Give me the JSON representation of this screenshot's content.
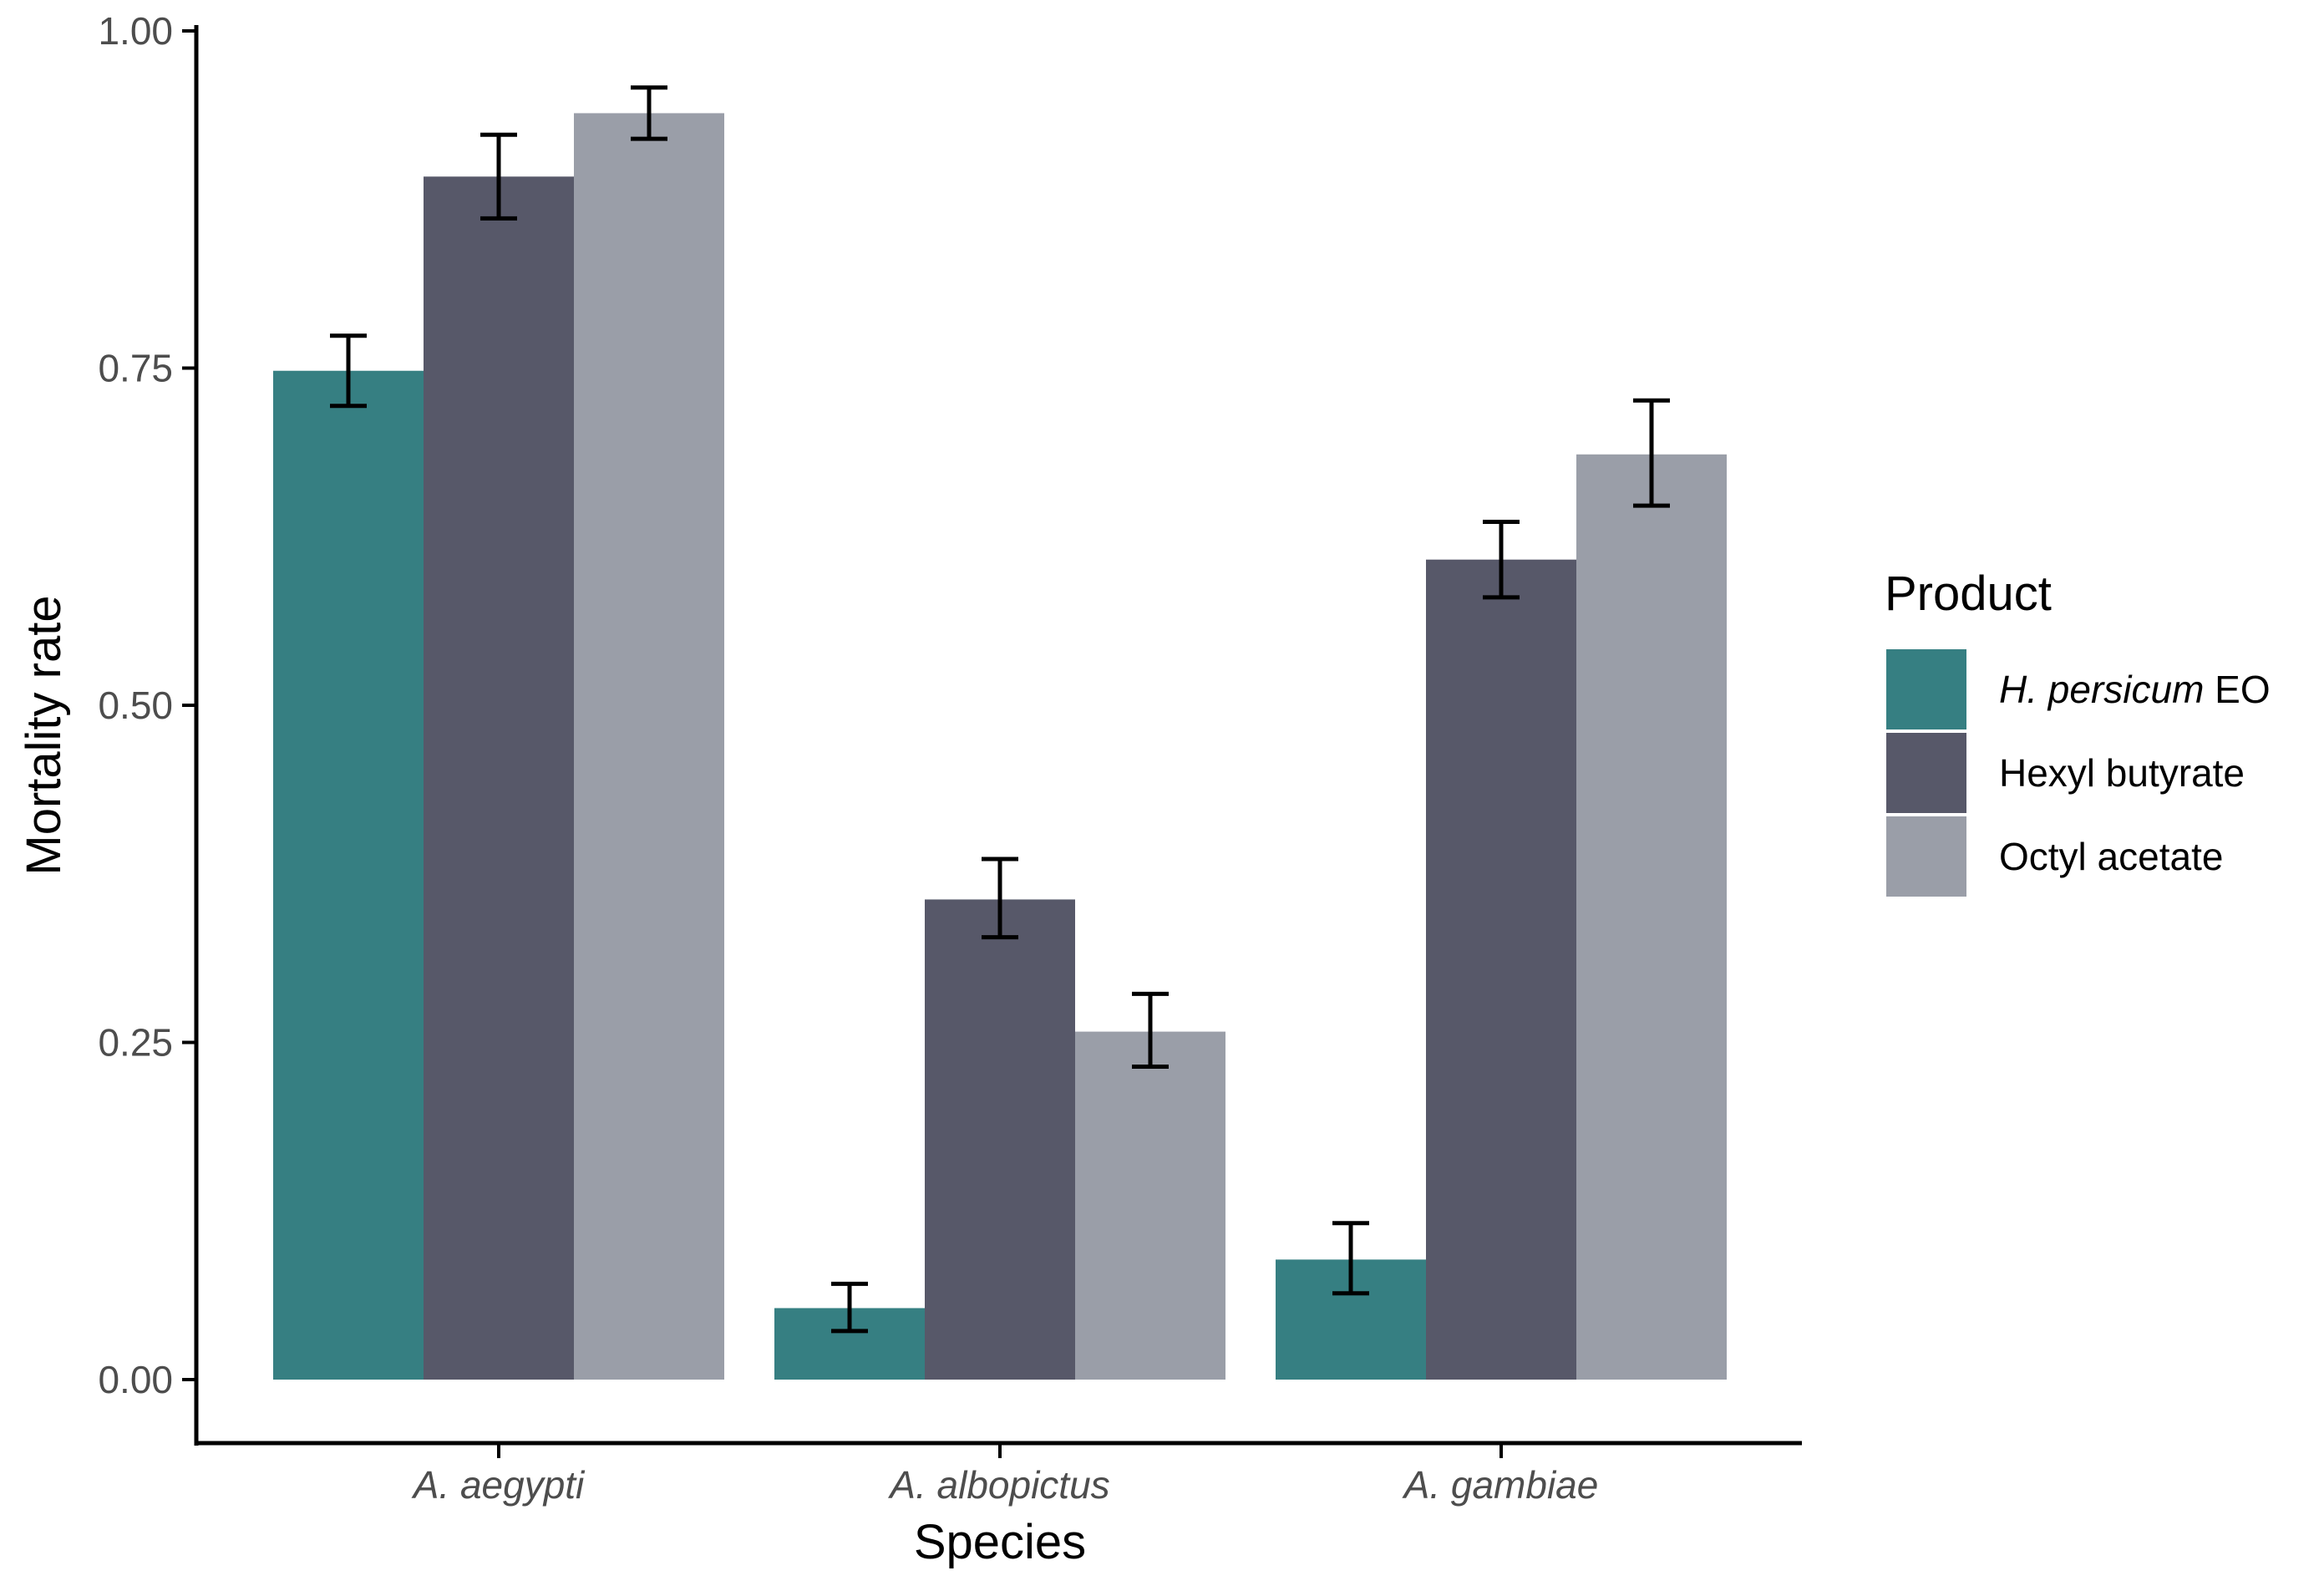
{
  "chart_data": {
    "type": "bar",
    "xlabel": "Species",
    "ylabel": "Mortality rate",
    "ylim": [
      0,
      1
    ],
    "yticks": [
      "0.00",
      "0.25",
      "0.50",
      "0.75",
      "1.00"
    ],
    "ytick_values": [
      0,
      0.25,
      0.5,
      0.75,
      1.0
    ],
    "categories": [
      "A. aegypti",
      "A. albopictus",
      "A. gambiae"
    ],
    "legend": {
      "title": "Product",
      "placement": "right"
    },
    "series": [
      {
        "name": "H. persicum EO",
        "name_italic": "H. persicum",
        "name_suffix": "EO",
        "color": "#367f82",
        "values": [
          0.748,
          0.053,
          0.089
        ],
        "error_low": [
          0.722,
          0.036,
          0.064
        ],
        "error_high": [
          0.774,
          0.071,
          0.116
        ]
      },
      {
        "name": "Hexyl butyrate",
        "color": "#575869",
        "values": [
          0.892,
          0.356,
          0.608
        ],
        "error_low": [
          0.861,
          0.328,
          0.58
        ],
        "error_high": [
          0.923,
          0.386,
          0.636
        ]
      },
      {
        "name": "Octyl acetate",
        "color": "#9a9ea8",
        "values": [
          0.939,
          0.258,
          0.686
        ],
        "error_low": [
          0.92,
          0.232,
          0.648
        ],
        "error_high": [
          0.958,
          0.286,
          0.726
        ]
      }
    ],
    "grid": false
  }
}
